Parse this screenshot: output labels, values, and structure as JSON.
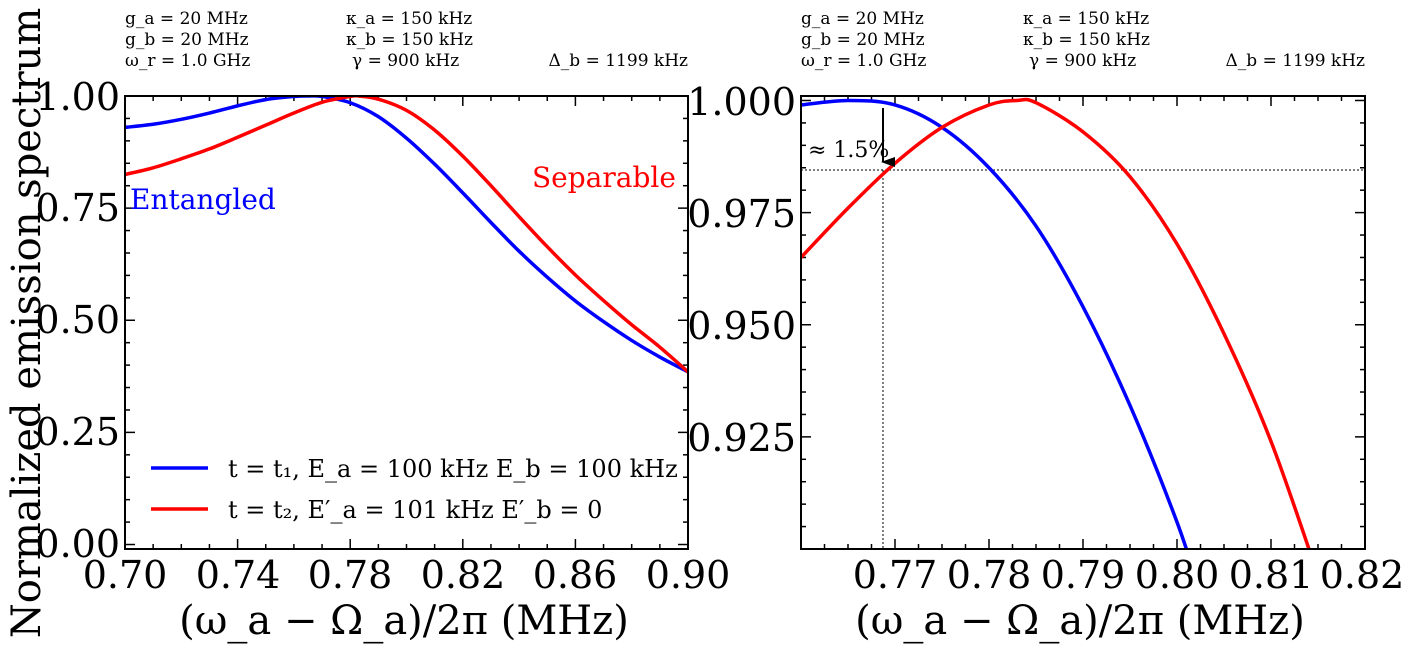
{
  "chart_data": [
    {
      "type": "line",
      "params": {
        "col1": [
          "g_a = 20 MHz",
          "g_b = 20 MHz",
          "ω_r = 1.0 GHz"
        ],
        "col2": [
          "κ_a = 150 kHz",
          "κ_b = 150 kHz",
          "γ = 900 kHz"
        ],
        "col3": "Δ_b = 1199 kHz"
      },
      "xlabel": "(ω_a − Ω_a)/2π (MHz)",
      "ylabel": "Normalized emission spectrum",
      "xlim": [
        0.7,
        0.9
      ],
      "ylim": [
        -0.01,
        1.0
      ],
      "xticks": [
        "0.70",
        "0.74",
        "0.78",
        "0.82",
        "0.86",
        "0.90"
      ],
      "yticks": [
        "0.00",
        "0.25",
        "0.50",
        "0.75",
        "1.00"
      ],
      "annotations": [
        {
          "text": "Entangled",
          "color": "#0000ff"
        },
        {
          "text": "Separable",
          "color": "#ff0000"
        }
      ],
      "legend": [
        "t = t₁, E_a = 100 kHz E_b = 100 kHz",
        "t = t₂, E′_a = 101 kHz E′_b = 0"
      ],
      "series": [
        {
          "name": "t = t₁, E_a = 100 kHz E_b = 100 kHz",
          "color": "#0000ff",
          "x": [
            0.7,
            0.71,
            0.72,
            0.73,
            0.74,
            0.75,
            0.76,
            0.765,
            0.77,
            0.78,
            0.79,
            0.8,
            0.81,
            0.82,
            0.83,
            0.84,
            0.85,
            0.86,
            0.87,
            0.88,
            0.89,
            0.9
          ],
          "y": [
            0.93,
            0.937,
            0.948,
            0.962,
            0.978,
            0.992,
            0.999,
            1.0,
            0.999,
            0.985,
            0.954,
            0.906,
            0.848,
            0.784,
            0.718,
            0.654,
            0.596,
            0.543,
            0.497,
            0.455,
            0.418,
            0.385
          ]
        },
        {
          "name": "t = t₂, E′_a = 101 kHz E′_b = 0",
          "color": "#ff0000",
          "x": [
            0.7,
            0.71,
            0.72,
            0.73,
            0.74,
            0.75,
            0.76,
            0.77,
            0.78,
            0.783,
            0.79,
            0.8,
            0.81,
            0.82,
            0.83,
            0.84,
            0.85,
            0.86,
            0.87,
            0.88,
            0.89,
            0.9
          ],
          "y": [
            0.825,
            0.84,
            0.86,
            0.882,
            0.908,
            0.935,
            0.962,
            0.986,
            0.999,
            1.0,
            0.993,
            0.968,
            0.924,
            0.866,
            0.8,
            0.731,
            0.664,
            0.601,
            0.544,
            0.49,
            0.44,
            0.385
          ]
        }
      ]
    },
    {
      "type": "line",
      "params": {
        "col1": [
          "g_a = 20 MHz",
          "g_b = 20 MHz",
          "ω_r = 1.0 GHz"
        ],
        "col2": [
          "κ_a = 150 kHz",
          "κ_b = 150 kHz",
          "γ = 900 kHz"
        ],
        "col3": "Δ_b = 1199 kHz"
      },
      "xlabel": "(ω_a − Ω_a)/2π (MHz)",
      "xlim": [
        0.76,
        0.82
      ],
      "ylim": [
        0.9,
        1.001
      ],
      "xticks": [
        "0.77",
        "0.78",
        "0.79",
        "0.80",
        "0.81",
        "0.82"
      ],
      "yticks": [
        "0.925",
        "0.950",
        "0.975",
        "1.000"
      ],
      "annotations": [
        {
          "text": "≈ 1.5%",
          "x": 0.7688,
          "y": 0.985
        }
      ],
      "series": [
        {
          "name": "t = t₁, E_a = 100 kHz E_b = 100 kHz",
          "color": "#0000ff",
          "x": [
            0.76,
            0.765,
            0.77,
            0.775,
            0.78,
            0.785,
            0.79,
            0.795,
            0.8,
            0.8025
          ],
          "y": [
            0.999,
            1.0,
            0.999,
            0.994,
            0.985,
            0.972,
            0.954,
            0.932,
            0.906,
            0.89
          ]
        },
        {
          "name": "t = t₂, E′_a = 101 kHz E′_b = 0",
          "color": "#ff0000",
          "x": [
            0.76,
            0.765,
            0.77,
            0.775,
            0.78,
            0.783,
            0.785,
            0.79,
            0.795,
            0.8,
            0.805,
            0.81,
            0.815,
            0.8155
          ],
          "y": [
            0.965,
            0.976,
            0.986,
            0.994,
            0.999,
            1.0,
            0.9995,
            0.993,
            0.983,
            0.968,
            0.948,
            0.924,
            0.894,
            0.89
          ]
        }
      ]
    }
  ]
}
